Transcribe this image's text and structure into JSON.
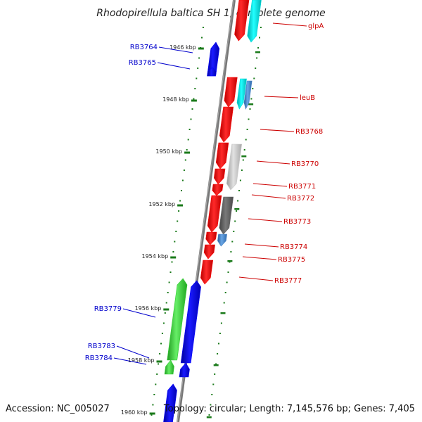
{
  "title": "Rhodopirellula baltica SH 1, complete genome",
  "footer": {
    "accession": "Accession: NC_005027",
    "topology": "Topology: circular; Length: 7,145,576 bp; Genes: 7,405"
  },
  "colors": {
    "backbone": "#777777",
    "tick": "#1a7a1a",
    "forward_label": "#cc0000",
    "reverse_label": "#0000cc",
    "red_gene": "#ff0000",
    "blue_gene": "#0000ff",
    "green_gene": "#33cc33",
    "cyan_gene": "#00dddd",
    "lightgray_gene": "#c8c8c8",
    "darkgray_gene": "#666666",
    "steelblue_gene": "#4a86c8"
  },
  "scale": {
    "major_ticks": [
      {
        "kbp": 1946,
        "label": "1946 kbp"
      },
      {
        "kbp": 1948,
        "label": "1948 kbp"
      },
      {
        "kbp": 1950,
        "label": "1950 kbp"
      },
      {
        "kbp": 1952,
        "label": "1952 kbp"
      },
      {
        "kbp": 1954,
        "label": "1954 kbp"
      },
      {
        "kbp": 1956,
        "label": "1956 kbp"
      },
      {
        "kbp": 1958,
        "label": "1958 kbp"
      },
      {
        "kbp": 1960,
        "label": "1960 kbp"
      }
    ]
  },
  "genes": [
    {
      "label": "glpA",
      "strand": "+",
      "color": "red_gene"
    },
    {
      "label": "",
      "strand": "+",
      "color": "cyan_gene"
    },
    {
      "label": "RB3764",
      "strand": "-",
      "color": "blue_gene"
    },
    {
      "label": "RB3765",
      "strand": "-",
      "color": "blue_gene"
    },
    {
      "label": "leuB",
      "strand": "+",
      "color": "red_gene"
    },
    {
      "label": "",
      "strand": "+",
      "color": "cyan_gene"
    },
    {
      "label": "",
      "strand": "+",
      "color": "steelblue_gene"
    },
    {
      "label": "RB3768",
      "strand": "+",
      "color": "red_gene"
    },
    {
      "label": "RB3770",
      "strand": "+",
      "color": "red_gene"
    },
    {
      "label": "",
      "strand": "+",
      "color": "lightgray_gene"
    },
    {
      "label": "RB3771",
      "strand": "+",
      "color": "red_gene"
    },
    {
      "label": "RB3772",
      "strand": "+",
      "color": "red_gene"
    },
    {
      "label": "RB3773",
      "strand": "+",
      "color": "red_gene"
    },
    {
      "label": "",
      "strand": "+",
      "color": "darkgray_gene"
    },
    {
      "label": "RB3774",
      "strand": "+",
      "color": "red_gene"
    },
    {
      "label": "",
      "strand": "+",
      "color": "steelblue_gene"
    },
    {
      "label": "RB3775",
      "strand": "+",
      "color": "red_gene"
    },
    {
      "label": "RB3777",
      "strand": "+",
      "color": "red_gene"
    },
    {
      "label": "RB3779",
      "strand": "-",
      "color": "green_gene"
    },
    {
      "label": "",
      "strand": "-",
      "color": "blue_gene"
    },
    {
      "label": "RB3783",
      "strand": "-",
      "color": "green_gene"
    },
    {
      "label": "RB3784",
      "strand": "-",
      "color": "blue_gene"
    },
    {
      "label": "",
      "strand": "-",
      "color": "blue_gene"
    }
  ]
}
